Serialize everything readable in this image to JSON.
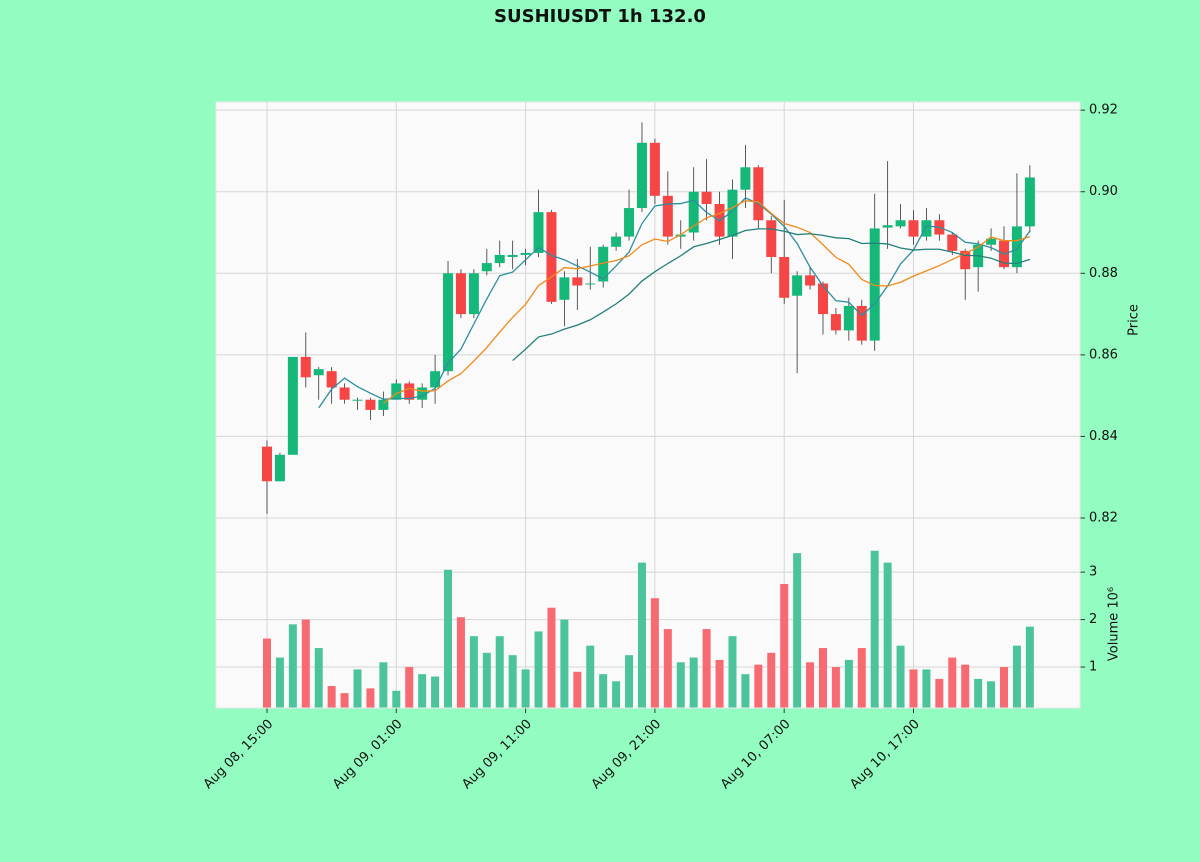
{
  "chart_data": {
    "type": "candlestick",
    "title": "SUSHIUSDT 1h 132.0",
    "y_label": "Price",
    "y2_label": "Volume  10⁶",
    "x": [
      "Aug 08, 15:00",
      "Aug 08, 16:00",
      "Aug 08, 17:00",
      "Aug 08, 18:00",
      "Aug 08, 19:00",
      "Aug 08, 20:00",
      "Aug 08, 21:00",
      "Aug 08, 22:00",
      "Aug 08, 23:00",
      "Aug 09, 00:00",
      "Aug 09, 01:00",
      "Aug 09, 02:00",
      "Aug 09, 03:00",
      "Aug 09, 04:00",
      "Aug 09, 05:00",
      "Aug 09, 06:00",
      "Aug 09, 07:00",
      "Aug 09, 08:00",
      "Aug 09, 09:00",
      "Aug 09, 10:00",
      "Aug 09, 11:00",
      "Aug 09, 12:00",
      "Aug 09, 13:00",
      "Aug 09, 14:00",
      "Aug 09, 15:00",
      "Aug 09, 16:00",
      "Aug 09, 17:00",
      "Aug 09, 18:00",
      "Aug 09, 19:00",
      "Aug 09, 20:00",
      "Aug 09, 21:00",
      "Aug 09, 22:00",
      "Aug 09, 23:00",
      "Aug 10, 00:00",
      "Aug 10, 01:00",
      "Aug 10, 02:00",
      "Aug 10, 03:00",
      "Aug 10, 04:00",
      "Aug 10, 05:00",
      "Aug 10, 06:00",
      "Aug 10, 07:00",
      "Aug 10, 08:00",
      "Aug 10, 09:00",
      "Aug 10, 10:00",
      "Aug 10, 11:00",
      "Aug 10, 12:00",
      "Aug 10, 13:00",
      "Aug 10, 14:00",
      "Aug 10, 15:00",
      "Aug 10, 16:00",
      "Aug 10, 17:00",
      "Aug 10, 18:00",
      "Aug 10, 19:00",
      "Aug 10, 20:00",
      "Aug 10, 21:00",
      "Aug 10, 22:00",
      "Aug 10, 23:00",
      "Aug 11, 00:00",
      "Aug 11, 01:00",
      "Aug 11, 02:00"
    ],
    "open": [
      0.8375,
      0.829,
      0.8355,
      0.8595,
      0.855,
      0.856,
      0.852,
      0.849,
      0.849,
      0.8465,
      0.849,
      0.853,
      0.849,
      0.852,
      0.856,
      0.88,
      0.87,
      0.8805,
      0.8825,
      0.884,
      0.8845,
      0.885,
      0.895,
      0.8735,
      0.879,
      0.8775,
      0.878,
      0.8865,
      0.889,
      0.896,
      0.912,
      0.899,
      0.889,
      0.89,
      0.9,
      0.897,
      0.889,
      0.9005,
      0.906,
      0.893,
      0.884,
      0.8745,
      0.8795,
      0.8775,
      0.87,
      0.866,
      0.872,
      0.8635,
      0.8912,
      0.8915,
      0.893,
      0.889,
      0.893,
      0.8895,
      0.8855,
      0.8815,
      0.887,
      0.888,
      0.8815,
      0.8915
    ],
    "high": [
      0.839,
      0.836,
      0.8595,
      0.8655,
      0.857,
      0.857,
      0.853,
      0.8495,
      0.8495,
      0.851,
      0.854,
      0.8535,
      0.853,
      0.86,
      0.883,
      0.881,
      0.881,
      0.886,
      0.888,
      0.888,
      0.886,
      0.9005,
      0.8955,
      0.8805,
      0.8835,
      0.8865,
      0.887,
      0.89,
      0.9005,
      0.917,
      0.913,
      0.905,
      0.893,
      0.906,
      0.908,
      0.9,
      0.903,
      0.9115,
      0.9065,
      0.894,
      0.898,
      0.8805,
      0.8815,
      0.878,
      0.8715,
      0.874,
      0.8735,
      0.8995,
      0.9075,
      0.897,
      0.8955,
      0.896,
      0.8945,
      0.89,
      0.886,
      0.888,
      0.891,
      0.8915,
      0.9045,
      0.9065
    ],
    "low": [
      0.821,
      0.829,
      0.8355,
      0.852,
      0.849,
      0.848,
      0.848,
      0.8465,
      0.844,
      0.845,
      0.849,
      0.848,
      0.847,
      0.848,
      0.855,
      0.869,
      0.869,
      0.8795,
      0.8815,
      0.881,
      0.882,
      0.884,
      0.8725,
      0.867,
      0.871,
      0.876,
      0.8765,
      0.8855,
      0.888,
      0.895,
      0.897,
      0.887,
      0.886,
      0.888,
      0.893,
      0.887,
      0.8835,
      0.896,
      0.891,
      0.88,
      0.8725,
      0.8555,
      0.876,
      0.865,
      0.865,
      0.8635,
      0.8625,
      0.861,
      0.886,
      0.891,
      0.887,
      0.888,
      0.888,
      0.8845,
      0.8735,
      0.8755,
      0.8855,
      0.881,
      0.88,
      0.89
    ],
    "close": [
      0.829,
      0.8355,
      0.8595,
      0.8545,
      0.8565,
      0.852,
      0.849,
      0.849,
      0.8465,
      0.849,
      0.853,
      0.849,
      0.852,
      0.856,
      0.88,
      0.87,
      0.88,
      0.8825,
      0.8845,
      0.8845,
      0.885,
      0.895,
      0.873,
      0.879,
      0.877,
      0.8775,
      0.8865,
      0.889,
      0.896,
      0.912,
      0.899,
      0.889,
      0.8895,
      0.9,
      0.897,
      0.889,
      0.9005,
      0.906,
      0.893,
      0.884,
      0.874,
      0.8795,
      0.877,
      0.87,
      0.866,
      0.872,
      0.8635,
      0.891,
      0.8918,
      0.893,
      0.889,
      0.893,
      0.8895,
      0.8855,
      0.881,
      0.887,
      0.8885,
      0.8815,
      0.8915,
      0.9035
    ],
    "volume": [
      1.6,
      1.2,
      1.9,
      2.0,
      1.4,
      0.6,
      0.45,
      0.95,
      0.55,
      1.1,
      0.5,
      1.0,
      0.85,
      0.8,
      3.05,
      2.05,
      1.65,
      1.3,
      1.65,
      1.25,
      0.95,
      1.75,
      2.25,
      2.0,
      0.9,
      1.45,
      0.85,
      0.7,
      1.25,
      3.2,
      2.45,
      1.8,
      1.1,
      1.2,
      1.8,
      1.15,
      1.65,
      0.85,
      1.05,
      1.3,
      2.75,
      3.4,
      1.1,
      1.4,
      1.0,
      1.15,
      1.4,
      3.45,
      3.2,
      1.45,
      0.95,
      0.95,
      0.75,
      1.2,
      1.05,
      0.75,
      0.7,
      1.0,
      1.45,
      1.85
    ],
    "up_color": "#16b87a",
    "down_color": "#f54545",
    "up_volume_color": "#4bc49c",
    "down_volume_color": "#f76a72",
    "moving_averages": [
      {
        "color": "#2a8fa0",
        "values": [
          null,
          null,
          null,
          null,
          0.847,
          0.8516,
          0.8543,
          0.8522,
          0.8506,
          0.8491,
          0.8493,
          0.8493,
          0.8499,
          0.8518,
          0.858,
          0.8614,
          0.8676,
          0.8737,
          0.8794,
          0.8803,
          0.8833,
          0.8863,
          0.8844,
          0.8833,
          0.8818,
          0.8803,
          0.8786,
          0.8818,
          0.8852,
          0.8922,
          0.8965,
          0.897,
          0.8971,
          0.8979,
          0.8949,
          0.8929,
          0.8952,
          0.8985,
          0.8971,
          0.8945,
          0.8915,
          0.8873,
          0.8815,
          0.8769,
          0.8733,
          0.8729,
          0.8697,
          0.8725,
          0.8769,
          0.8823,
          0.8857,
          0.8916,
          0.8913,
          0.89,
          0.8876,
          0.8872,
          0.8863,
          0.8847,
          0.8859,
          0.8904
        ]
      },
      {
        "color": "#f08a1c",
        "values": [
          null,
          null,
          null,
          null,
          null,
          null,
          null,
          null,
          null,
          0.8481,
          0.8505,
          0.8518,
          0.8511,
          0.8512,
          0.8536,
          0.8554,
          0.8585,
          0.8618,
          0.8656,
          0.8692,
          0.8724,
          0.877,
          0.8791,
          0.8814,
          0.8811,
          0.8818,
          0.8825,
          0.8831,
          0.8843,
          0.887,
          0.8884,
          0.8878,
          0.8895,
          0.8916,
          0.8936,
          0.8947,
          0.8961,
          0.8978,
          0.8975,
          0.8947,
          0.8922,
          0.8913,
          0.89,
          0.887,
          0.8839,
          0.8822,
          0.8785,
          0.877,
          0.8769,
          0.8778,
          0.8793,
          0.8806,
          0.8819,
          0.8834,
          0.8849,
          0.8864,
          0.8889,
          0.888,
          0.888,
          0.889
        ]
      },
      {
        "color": "#23807a",
        "values": [
          null,
          null,
          null,
          null,
          null,
          null,
          null,
          null,
          null,
          null,
          null,
          null,
          null,
          null,
          null,
          null,
          null,
          null,
          null,
          0.8586,
          0.8614,
          0.8644,
          0.8651,
          0.8663,
          0.8673,
          0.8686,
          0.8705,
          0.8725,
          0.8749,
          0.8781,
          0.8804,
          0.8824,
          0.8843,
          0.8865,
          0.8873,
          0.8883,
          0.8893,
          0.8905,
          0.8909,
          0.8909,
          0.8903,
          0.8895,
          0.8897,
          0.8893,
          0.8887,
          0.8885,
          0.8873,
          0.8874,
          0.8872,
          0.8862,
          0.8857,
          0.8859,
          0.8859,
          0.8852,
          0.8844,
          0.8843,
          0.8837,
          0.8825,
          0.8824,
          0.8834
        ]
      }
    ],
    "ylim": [
      0.82,
      0.922
    ],
    "yticks": [
      0.82,
      0.84,
      0.86,
      0.88,
      {
        "value": 0.9,
        "label": "0.90"
      },
      0.92
    ],
    "y2lim": [
      0.137,
      4.14
    ],
    "y2ticks": [
      1,
      2,
      3
    ],
    "xticks": [
      "Aug 08, 15:00",
      "Aug 09, 01:00",
      "Aug 09, 11:00",
      "Aug 09, 21:00",
      "Aug 10, 07:00",
      "Aug 10, 17:00"
    ],
    "grid": true
  }
}
